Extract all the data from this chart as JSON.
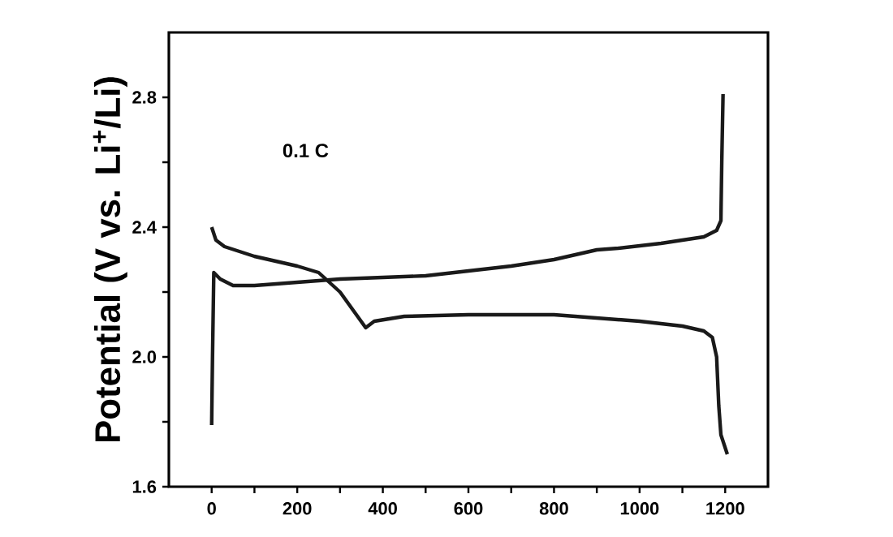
{
  "chart_data": {
    "type": "line",
    "ylabel": "Potential (V vs. Li$^{+}$/Li)",
    "annotations": [
      "0.1 C"
    ],
    "xlim": [
      -100,
      1300
    ],
    "ylim": [
      1.6,
      3.0
    ],
    "xticks": [
      0,
      {
        "value": 100,
        "label": null
      },
      200,
      {
        "value": 300,
        "label": null
      },
      400,
      {
        "value": 500,
        "label": null
      },
      600,
      {
        "value": 700,
        "label": null
      },
      800,
      {
        "value": 900,
        "label": null
      },
      1000,
      {
        "value": 1100,
        "label": null
      },
      1200
    ],
    "yticks": [
      1.6,
      {
        "value": 1.8,
        "label": null
      },
      {
        "value": 2,
        "label": "2.0"
      },
      {
        "value": 2.2,
        "label": null
      },
      2.4,
      {
        "value": 2.6,
        "label": null
      },
      2.8
    ],
    "grid": false,
    "marker": "none",
    "line_style": "solid",
    "series": [
      {
        "color": "#1a1a1a",
        "x": [
          0,
          10,
          30,
          100,
          200,
          250,
          300,
          360,
          380,
          450,
          600,
          800,
          1000,
          1100,
          1150,
          1170,
          1180,
          1185,
          1190,
          1205
        ],
        "values": [
          2.4,
          2.36,
          2.34,
          2.31,
          2.28,
          2.26,
          2.2,
          2.09,
          2.11,
          2.125,
          2.13,
          2.13,
          2.11,
          2.095,
          2.08,
          2.06,
          2.0,
          1.85,
          1.76,
          1.7
        ]
      },
      {
        "color": "#1a1a1a",
        "x": [
          0,
          2,
          5,
          20,
          50,
          100,
          200,
          300,
          400,
          500,
          600,
          700,
          800,
          900,
          950,
          1050,
          1150,
          1180,
          1190,
          1192,
          1195
        ],
        "values": [
          1.79,
          2.0,
          2.26,
          2.24,
          2.22,
          2.22,
          2.23,
          2.24,
          2.245,
          2.25,
          2.265,
          2.28,
          2.3,
          2.33,
          2.335,
          2.35,
          2.37,
          2.39,
          2.42,
          2.6,
          2.81
        ]
      }
    ]
  }
}
